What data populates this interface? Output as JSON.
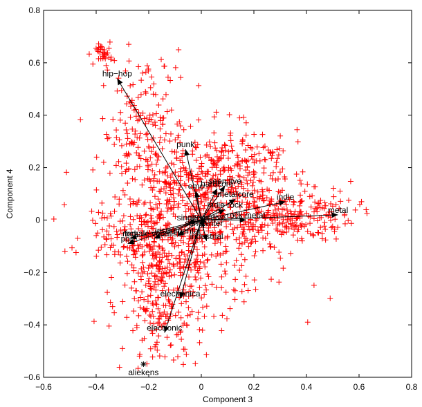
{
  "chart_data": {
    "type": "scatter",
    "title": "",
    "xlabel": "Component 3",
    "ylabel": "Component 4",
    "xlim": [
      -0.6,
      0.8
    ],
    "ylim": [
      -0.6,
      0.8
    ],
    "xticks": [
      -0.6,
      -0.4,
      -0.2,
      0,
      0.2,
      0.4,
      0.6,
      0.8
    ],
    "yticks": [
      -0.6,
      -0.4,
      -0.2,
      0,
      0.2,
      0.4,
      0.6,
      0.8
    ],
    "xtick_labels": [
      "−0.6",
      "−0.4",
      "−0.2",
      "0",
      "0.2",
      "0.4",
      "0.6",
      "0.8"
    ],
    "ytick_labels": [
      "−0.6",
      "−0.4",
      "−0.2",
      "0",
      "0.2",
      "0.4",
      "0.6",
      "0.8"
    ],
    "grid": false,
    "marker_color": "#ff0000",
    "vector_color": "#000000",
    "vectors": [
      {
        "name": "hip−hop",
        "x": -0.32,
        "y": 0.54
      },
      {
        "name": "punk",
        "x": -0.06,
        "y": 0.27
      },
      {
        "name": "emo",
        "x": -0.02,
        "y": 0.11
      },
      {
        "name": "hardcore",
        "x": 0.06,
        "y": 0.12
      },
      {
        "name": "seen live",
        "x": 0.09,
        "y": 0.13
      },
      {
        "name": "metalcore",
        "x": 0.13,
        "y": 0.08
      },
      {
        "name": "indie rock",
        "x": 0.09,
        "y": 0.04
      },
      {
        "name": "indie",
        "x": 0.32,
        "y": 0.07
      },
      {
        "name": "metal",
        "x": 0.52,
        "y": 0.02
      },
      {
        "name": "rock metal",
        "x": 0.17,
        "y": 0.0
      },
      {
        "name": "alternative",
        "x": 0.02,
        "y": -0.01
      },
      {
        "name": "singer",
        "x": -0.05,
        "y": -0.01
      },
      {
        "name": "songwriter",
        "x": 0.01,
        "y": -0.03
      },
      {
        "name": "industrial",
        "x": 0.02,
        "y": -0.08
      },
      {
        "name": "rock",
        "x": -0.27,
        "y": -0.07
      },
      {
        "name": "pop",
        "x": -0.28,
        "y": -0.09
      },
      {
        "name": "female vocalists",
        "x": -0.18,
        "y": -0.07
      },
      {
        "name": "instrumental",
        "x": -0.09,
        "y": -0.06
      },
      {
        "name": "electronica",
        "x": -0.08,
        "y": -0.3
      },
      {
        "name": "electronic",
        "x": -0.14,
        "y": -0.43
      }
    ],
    "star_point": {
      "name": "aliekens",
      "x": -0.22,
      "y": -0.55
    },
    "point_clusters": [
      {
        "cx": 0.0,
        "cy": 0.02,
        "sx": 0.18,
        "sy": 0.16,
        "n": 650
      },
      {
        "cx": 0.32,
        "cy": 0.02,
        "sx": 0.13,
        "sy": 0.05,
        "n": 230
      },
      {
        "cx": -0.22,
        "cy": 0.32,
        "sx": 0.08,
        "sy": 0.16,
        "n": 180
      },
      {
        "cx": -0.37,
        "cy": 0.63,
        "sx": 0.015,
        "sy": 0.02,
        "n": 35
      },
      {
        "cx": -0.14,
        "cy": -0.32,
        "sx": 0.08,
        "sy": 0.14,
        "n": 240
      },
      {
        "cx": -0.2,
        "cy": -0.06,
        "sx": 0.12,
        "sy": 0.05,
        "n": 140
      },
      {
        "cx": 0.1,
        "cy": 0.2,
        "sx": 0.1,
        "sy": 0.06,
        "n": 120
      }
    ]
  }
}
